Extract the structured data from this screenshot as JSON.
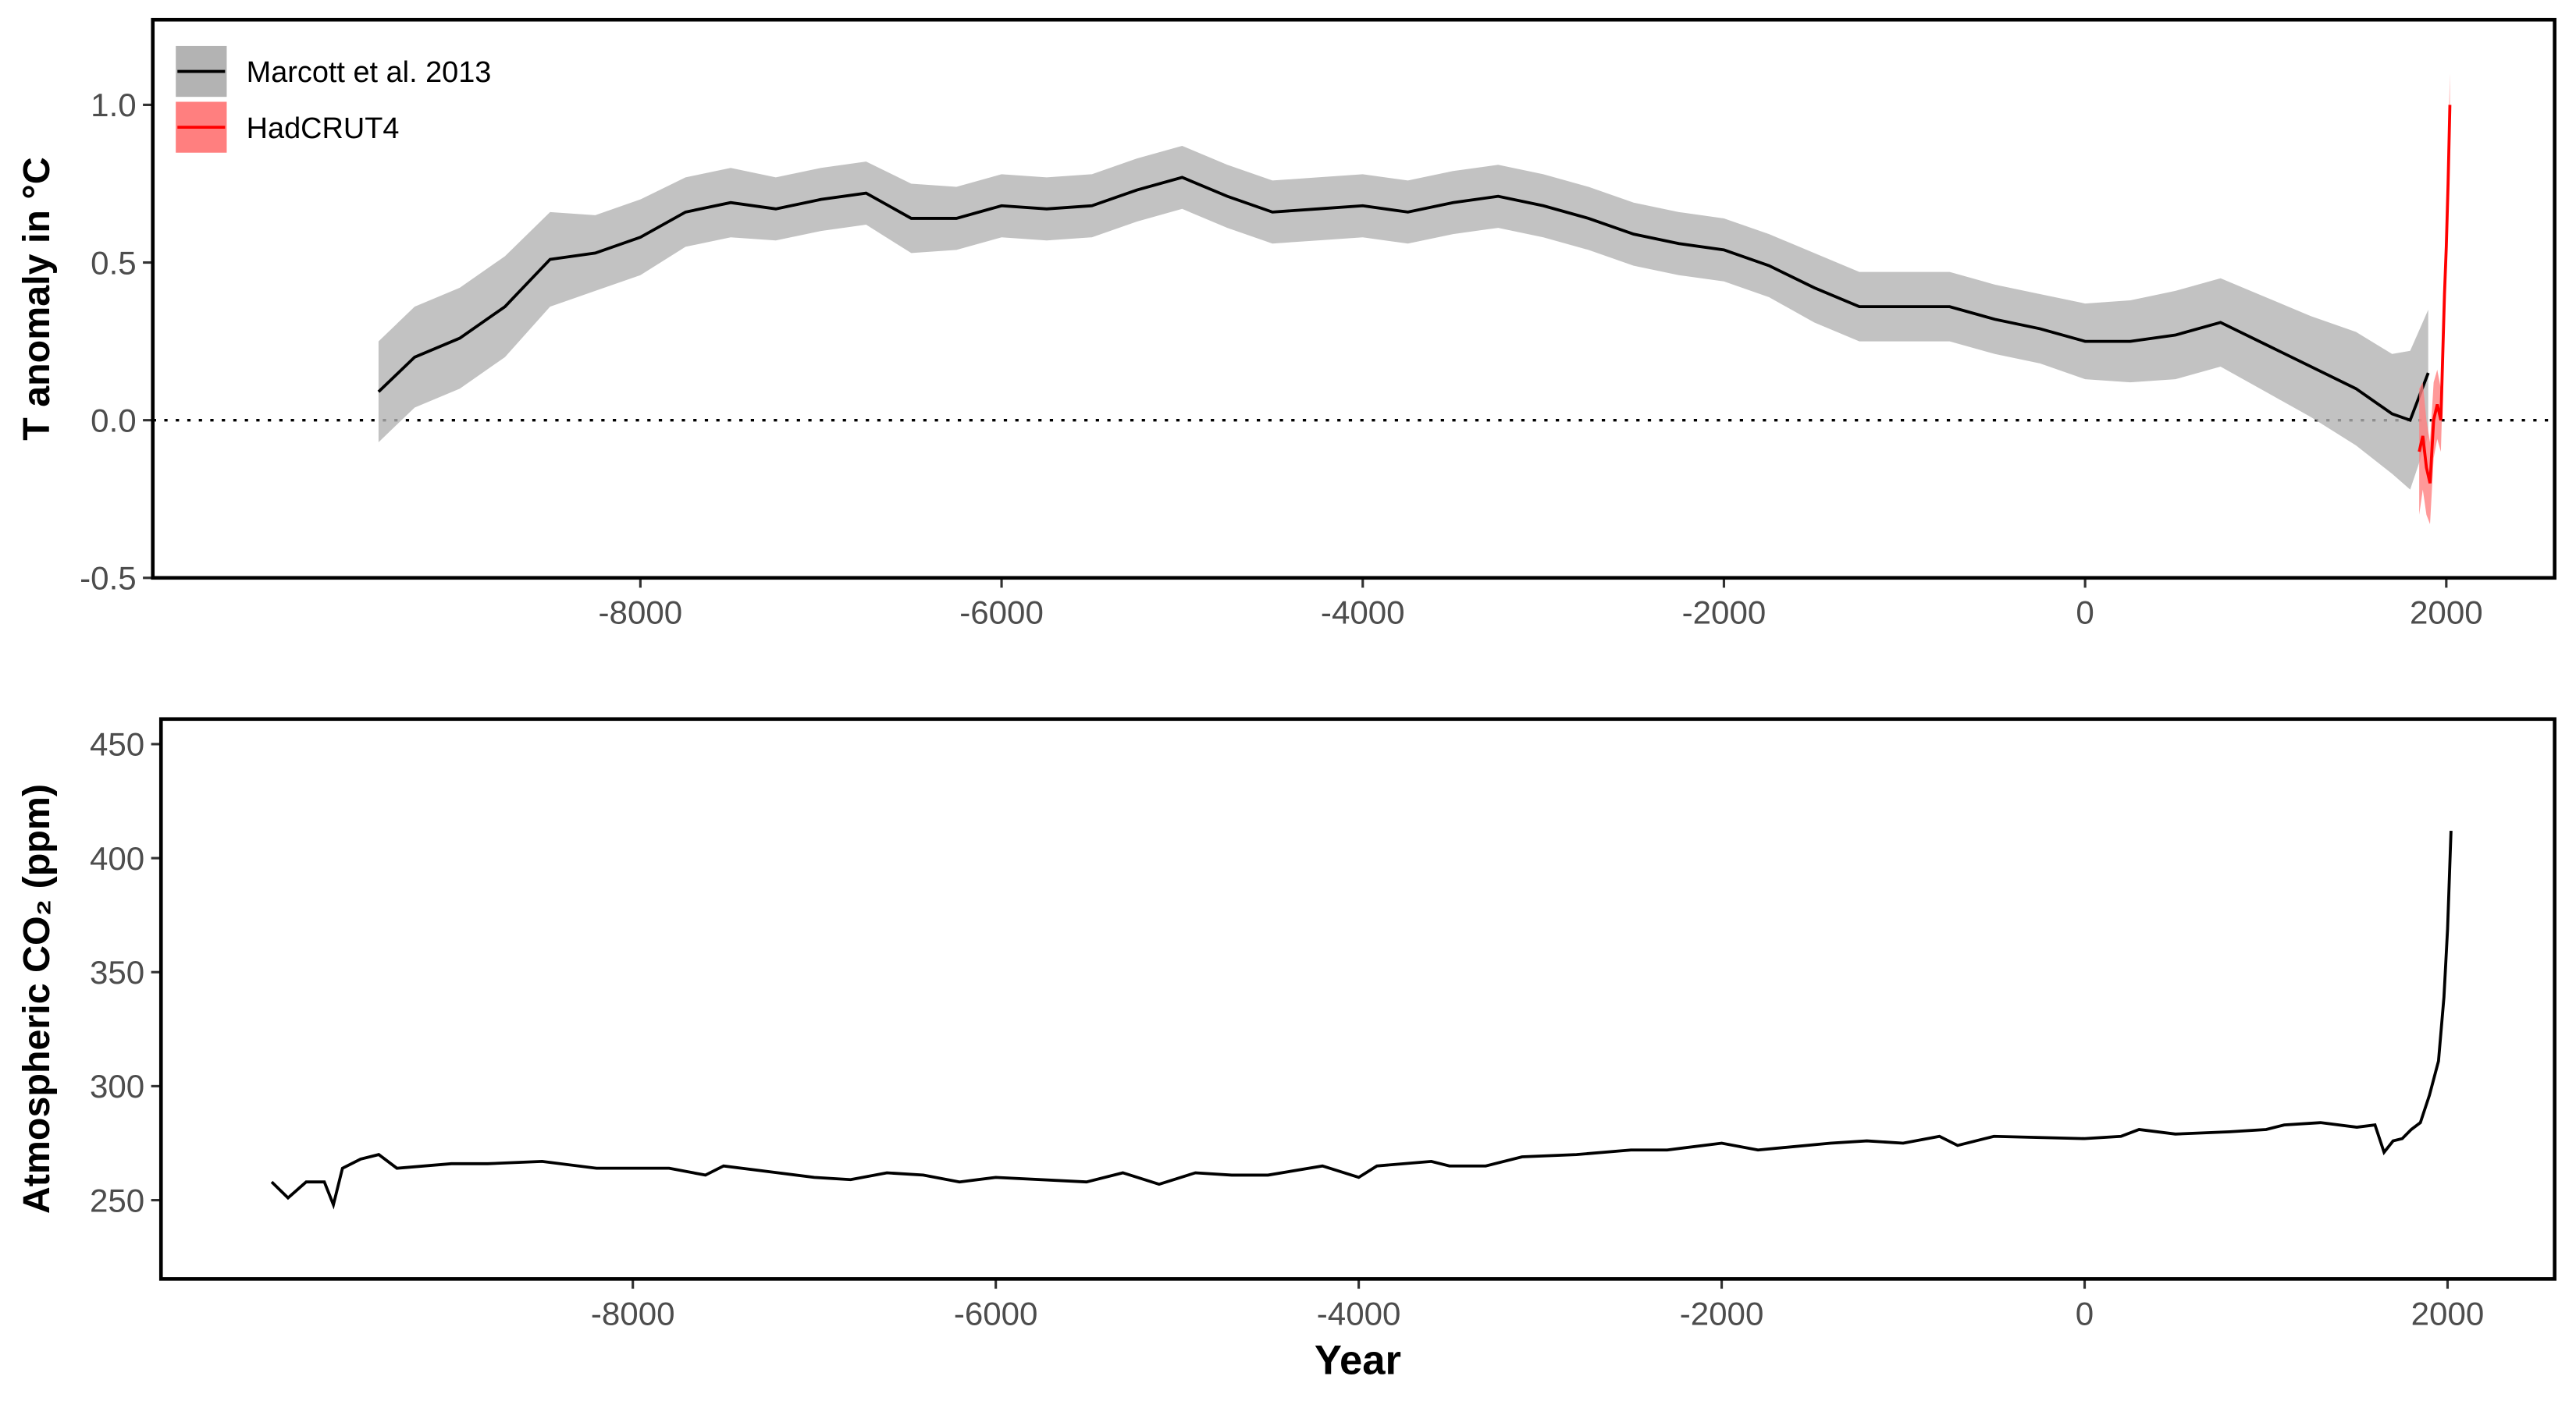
{
  "chart_data": [
    {
      "type": "band-line",
      "ylabel": "T anomaly in °C",
      "xlim": [
        -10700,
        2600
      ],
      "ylim": [
        -0.5,
        1.27
      ],
      "xticks": [
        -8000,
        -6000,
        -4000,
        -2000,
        0,
        2000
      ],
      "yticks": [
        -0.5,
        {
          "value": 0,
          "label": "0.0"
        },
        0.5,
        {
          "value": 1,
          "label": "1.0"
        }
      ],
      "reference_line": 0,
      "legend": "top-left",
      "series": [
        {
          "name": "Marcott et al. 2013",
          "color": "#000000",
          "fill": "#b3b3b3",
          "x": [
            -9450,
            -9250,
            -9000,
            -8750,
            -8500,
            -8250,
            -8000,
            -7750,
            -7500,
            -7250,
            -7000,
            -6750,
            -6500,
            -6250,
            -6000,
            -5750,
            -5500,
            -5250,
            -5000,
            -4750,
            -4500,
            -4250,
            -4000,
            -3750,
            -3500,
            -3250,
            -3000,
            -2750,
            -2500,
            -2250,
            -2000,
            -1750,
            -1500,
            -1250,
            -1000,
            -750,
            -500,
            -250,
            0,
            250,
            500,
            750,
            1000,
            1250,
            1500,
            1700,
            1800,
            1900
          ],
          "values": [
            0.09,
            0.2,
            0.26,
            0.36,
            0.51,
            0.53,
            0.58,
            0.66,
            0.69,
            0.67,
            0.7,
            0.72,
            0.64,
            0.64,
            0.68,
            0.67,
            0.68,
            0.73,
            0.77,
            0.71,
            0.66,
            0.67,
            0.68,
            0.66,
            0.69,
            0.71,
            0.68,
            0.64,
            0.59,
            0.56,
            0.54,
            0.49,
            0.42,
            0.36,
            0.36,
            0.36,
            0.32,
            0.29,
            0.25,
            0.25,
            0.27,
            0.31,
            0.24,
            0.17,
            0.1,
            0.02,
            0,
            0.15
          ],
          "lower": [
            -0.07,
            0.04,
            0.1,
            0.2,
            0.36,
            0.41,
            0.46,
            0.55,
            0.58,
            0.57,
            0.6,
            0.62,
            0.53,
            0.54,
            0.58,
            0.57,
            0.58,
            0.63,
            0.67,
            0.61,
            0.56,
            0.57,
            0.58,
            0.56,
            0.59,
            0.61,
            0.58,
            0.54,
            0.49,
            0.46,
            0.44,
            0.39,
            0.31,
            0.25,
            0.25,
            0.25,
            0.21,
            0.18,
            0.13,
            0.12,
            0.13,
            0.17,
            0.09,
            0.01,
            -0.08,
            -0.17,
            -0.22,
            -0.05
          ],
          "upper": [
            0.25,
            0.36,
            0.42,
            0.52,
            0.66,
            0.65,
            0.7,
            0.77,
            0.8,
            0.77,
            0.8,
            0.82,
            0.75,
            0.74,
            0.78,
            0.77,
            0.78,
            0.83,
            0.87,
            0.81,
            0.76,
            0.77,
            0.78,
            0.76,
            0.79,
            0.81,
            0.78,
            0.74,
            0.69,
            0.66,
            0.64,
            0.59,
            0.53,
            0.47,
            0.47,
            0.47,
            0.43,
            0.4,
            0.37,
            0.38,
            0.41,
            0.45,
            0.39,
            0.33,
            0.28,
            0.21,
            0.22,
            0.35
          ]
        },
        {
          "name": "HadCRUT4",
          "color": "#ff0000",
          "fill": "#ff7f7f",
          "x": [
            1850,
            1870,
            1890,
            1910,
            1930,
            1950,
            1970,
            1990,
            2000,
            2010,
            2020
          ],
          "values": [
            -0.1,
            -0.05,
            -0.15,
            -0.2,
            0,
            0.05,
            0,
            0.4,
            0.55,
            0.75,
            1.0
          ],
          "lower": [
            -0.3,
            -0.22,
            -0.3,
            -0.33,
            -0.12,
            -0.06,
            -0.1,
            0.3,
            0.45,
            0.65,
            0.9
          ],
          "upper": [
            0.1,
            0.12,
            0,
            -0.07,
            0.12,
            0.16,
            0.1,
            0.5,
            0.65,
            0.85,
            1.1
          ]
        }
      ]
    },
    {
      "type": "line",
      "ylabel": "Atmospheric  CO₂ (ppm)",
      "xlabel": "Year",
      "xlim": [
        -10600,
        2590
      ],
      "ylim": [
        215.5,
        461
      ],
      "xticks": [
        -8000,
        -6000,
        -4000,
        -2000,
        0,
        2000
      ],
      "yticks": [
        250,
        300,
        350,
        400,
        450
      ],
      "series": [
        {
          "color": "#000000",
          "x": [
            -9990,
            -9900,
            -9800,
            -9700,
            -9650,
            -9600,
            -9500,
            -9400,
            -9300,
            -9000,
            -8800,
            -8500,
            -8200,
            -7800,
            -7600,
            -7500,
            -7200,
            -7000,
            -6800,
            -6600,
            -6400,
            -6200,
            -6000,
            -5500,
            -5300,
            -5100,
            -4900,
            -4700,
            -4500,
            -4200,
            -4000,
            -3900,
            -3600,
            -3500,
            -3300,
            -3100,
            -2800,
            -2500,
            -2300,
            -2000,
            -1800,
            -1400,
            -1200,
            -1000,
            -800,
            -700,
            -500,
            0,
            200,
            300,
            500,
            800,
            1000,
            1100,
            1300,
            1500,
            1600,
            1650,
            1700,
            1750,
            1800,
            1850,
            1900,
            1950,
            1980,
            2000,
            2019
          ],
          "values": [
            258,
            251,
            258,
            258,
            248,
            264,
            268,
            270,
            264,
            266,
            266,
            267,
            264,
            264,
            261,
            265,
            262,
            260,
            259,
            262,
            261,
            258,
            260,
            258,
            262,
            257,
            262,
            261,
            261,
            265,
            260,
            265,
            267,
            265,
            265,
            269,
            270,
            272,
            272,
            275,
            272,
            275,
            276,
            275,
            278,
            274,
            278,
            277,
            278,
            281,
            279,
            280,
            281,
            283,
            284,
            282,
            283,
            271,
            276,
            277,
            281,
            284,
            296,
            311,
            339,
            369,
            412
          ]
        }
      ]
    }
  ]
}
